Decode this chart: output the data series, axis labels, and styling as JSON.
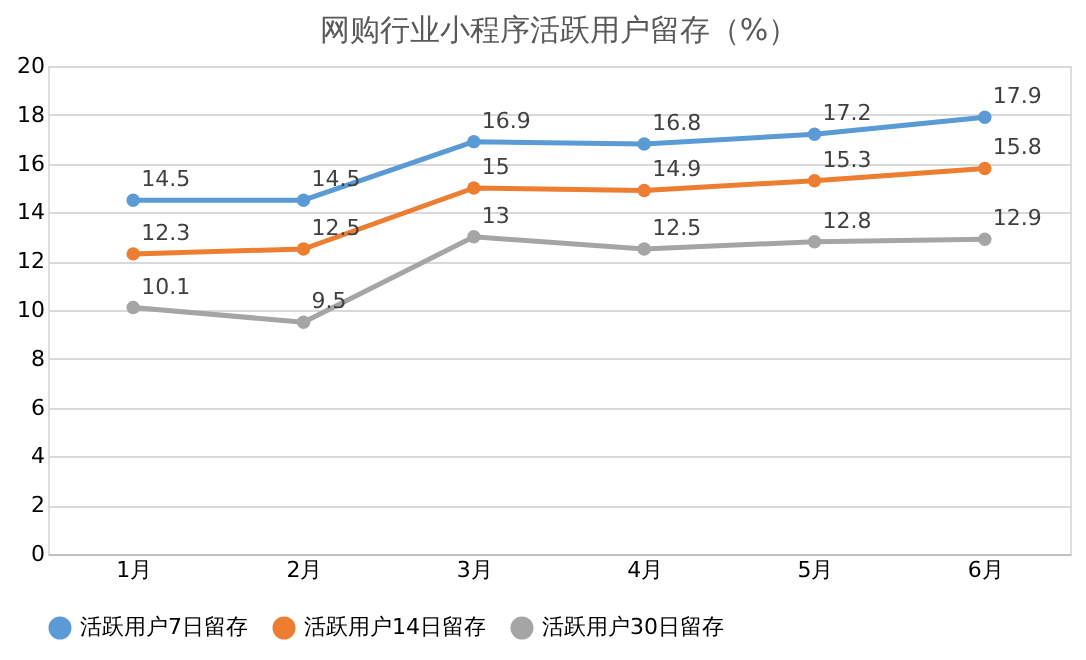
{
  "chart_data": {
    "type": "line",
    "title": "网购行业小程序活跃用户留存（%）",
    "categories": [
      "1月",
      "2月",
      "3月",
      "4月",
      "5月",
      "6月"
    ],
    "series": [
      {
        "name": "活跃用户7日留存",
        "color": "#5b9bd5",
        "values": [
          14.5,
          14.5,
          16.9,
          16.8,
          17.2,
          17.9
        ]
      },
      {
        "name": "活跃用户14日留存",
        "color": "#ed7d31",
        "values": [
          12.3,
          12.5,
          15,
          14.9,
          15.3,
          15.8
        ]
      },
      {
        "name": "活跃用户30日留存",
        "color": "#a5a5a5",
        "values": [
          10.1,
          9.5,
          13,
          12.5,
          12.8,
          12.9
        ]
      }
    ],
    "ylim": [
      0,
      20
    ],
    "yticks": [
      0,
      2,
      4,
      6,
      8,
      10,
      12,
      14,
      16,
      18,
      20
    ],
    "grid": "y",
    "legend": "bottom",
    "marker": "circle",
    "line_style": "solid",
    "data_labels": true
  }
}
